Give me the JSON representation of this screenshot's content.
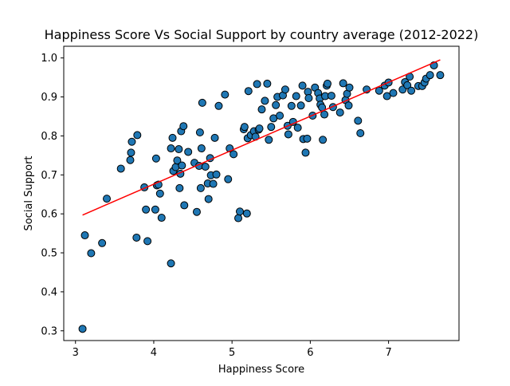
{
  "chart_data": {
    "type": "scatter",
    "title": "Happiness Score Vs Social Support by country average (2012-2022)",
    "xlabel": "Happiness Score",
    "ylabel": "Social Support",
    "xlim": [
      2.85,
      7.9
    ],
    "ylim": [
      0.275,
      1.03
    ],
    "xticks": [
      3,
      4,
      5,
      6,
      7
    ],
    "yticks": [
      0.3,
      0.4,
      0.5,
      0.6,
      0.7,
      0.8,
      0.9,
      1.0
    ],
    "ytick_labels": [
      "0.3",
      "0.4",
      "0.5",
      "0.6",
      "0.7",
      "0.8",
      "0.9",
      "1.0"
    ],
    "grid": false,
    "legend": "none",
    "colors": {
      "points": "#1f77b4",
      "point_edge": "#000000",
      "trend": "#ff0000"
    },
    "series": [
      {
        "kind": "points",
        "x": [
          3.09,
          3.12,
          3.2,
          3.34,
          3.4,
          3.58,
          3.7,
          3.71,
          3.72,
          3.78,
          3.79,
          3.88,
          3.9,
          3.92,
          4.02,
          4.03,
          4.04,
          4.06,
          4.08,
          4.1,
          4.22,
          4.22,
          4.24,
          4.25,
          4.28,
          4.3,
          4.32,
          4.33,
          4.34,
          4.35,
          4.36,
          4.38,
          4.39,
          4.44,
          4.52,
          4.55,
          4.58,
          4.59,
          4.6,
          4.61,
          4.62,
          4.66,
          4.69,
          4.7,
          4.72,
          4.73,
          4.76,
          4.78,
          4.8,
          4.83,
          4.91,
          4.95,
          4.97,
          5.02,
          5.08,
          5.1,
          5.15,
          5.16,
          5.19,
          5.2,
          5.21,
          5.24,
          5.28,
          5.3,
          5.32,
          5.34,
          5.35,
          5.38,
          5.42,
          5.45,
          5.47,
          5.5,
          5.53,
          5.56,
          5.58,
          5.61,
          5.65,
          5.68,
          5.71,
          5.72,
          5.76,
          5.78,
          5.82,
          5.84,
          5.88,
          5.9,
          5.91,
          5.94,
          5.96,
          5.97,
          5.98,
          6.03,
          6.06,
          6.1,
          6.12,
          6.13,
          6.15,
          6.16,
          6.18,
          6.19,
          6.21,
          6.22,
          6.27,
          6.29,
          6.38,
          6.42,
          6.45,
          6.47,
          6.49,
          6.5,
          6.61,
          6.64,
          6.72,
          6.88,
          6.95,
          6.98,
          7.0,
          7.06,
          7.18,
          7.21,
          7.24,
          7.27,
          7.29,
          7.38,
          7.43,
          7.46,
          7.48,
          7.53,
          7.58,
          7.66
        ],
        "y": [
          0.305,
          0.545,
          0.499,
          0.525,
          0.639,
          0.716,
          0.738,
          0.757,
          0.785,
          0.539,
          0.802,
          0.668,
          0.611,
          0.53,
          0.611,
          0.742,
          0.673,
          0.675,
          0.652,
          0.59,
          0.473,
          0.768,
          0.795,
          0.71,
          0.72,
          0.737,
          0.766,
          0.666,
          0.703,
          0.812,
          0.724,
          0.825,
          0.622,
          0.759,
          0.731,
          0.605,
          0.723,
          0.809,
          0.666,
          0.768,
          0.885,
          0.721,
          0.678,
          0.638,
          0.743,
          0.699,
          0.677,
          0.795,
          0.701,
          0.877,
          0.906,
          0.689,
          0.768,
          0.753,
          0.589,
          0.606,
          0.817,
          0.823,
          0.601,
          0.794,
          0.915,
          0.802,
          0.812,
          0.798,
          0.933,
          0.816,
          0.819,
          0.868,
          0.89,
          0.934,
          0.79,
          0.823,
          0.845,
          0.879,
          0.9,
          0.852,
          0.904,
          0.919,
          0.826,
          0.804,
          0.877,
          0.836,
          0.902,
          0.821,
          0.878,
          0.929,
          0.792,
          0.757,
          0.793,
          0.913,
          0.897,
          0.852,
          0.924,
          0.91,
          0.896,
          0.88,
          0.873,
          0.79,
          0.855,
          0.902,
          0.929,
          0.934,
          0.903,
          0.874,
          0.86,
          0.935,
          0.892,
          0.908,
          0.878,
          0.924,
          0.839,
          0.807,
          0.919,
          0.916,
          0.929,
          0.902,
          0.937,
          0.91,
          0.919,
          0.938,
          0.93,
          0.952,
          0.916,
          0.928,
          0.928,
          0.937,
          0.947,
          0.956,
          0.981,
          0.956
        ]
      },
      {
        "kind": "trend_line",
        "x": [
          3.09,
          7.66
        ],
        "y": [
          0.597,
          0.995
        ]
      }
    ]
  }
}
